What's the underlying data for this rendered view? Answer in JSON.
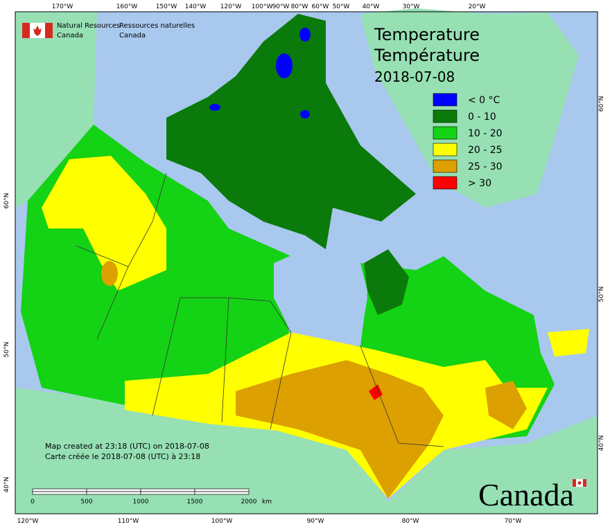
{
  "header": {
    "org_en": [
      "Natural Resources",
      "Canada"
    ],
    "org_fr": [
      "Ressources naturelles",
      "Canada"
    ]
  },
  "title": {
    "en": "Temperature",
    "fr": "Température",
    "date": "2018-07-08"
  },
  "legend": [
    {
      "label": "< 0 °C",
      "color": "#0000ff"
    },
    {
      "label": "0 - 10",
      "color": "#0a7a0a"
    },
    {
      "label": "10 - 20",
      "color": "#14d214"
    },
    {
      "label": "20 - 25",
      "color": "#ffff00"
    },
    {
      "label": "25 - 30",
      "color": "#dca000"
    },
    {
      "label": "> 30",
      "color": "#ff0000"
    }
  ],
  "credits": [
    "Map created at 23:18 (UTC) on 2018-07-08",
    "Carte créée le 2018-07-08 (UTC) à 23:18"
  ],
  "scale_bar": {
    "ticks": [
      "0",
      "500",
      "1000",
      "1500",
      "2000"
    ],
    "unit": "km"
  },
  "graticule": {
    "top": [
      "170°W",
      "160°W",
      "150°W",
      "140°W",
      "120°W",
      "100°W",
      "90°W",
      "80°W",
      "60°W",
      "50°W",
      "40°W",
      "30°W",
      "20°W"
    ],
    "bottom": [
      "120°W",
      "110°W",
      "100°W",
      "90°W",
      "80°W",
      "70°W"
    ],
    "left": [
      "60°N",
      "50°N",
      "40°N"
    ],
    "right": [
      "60°N",
      "50°N",
      "40°N"
    ]
  },
  "wordmark": "Canada"
}
